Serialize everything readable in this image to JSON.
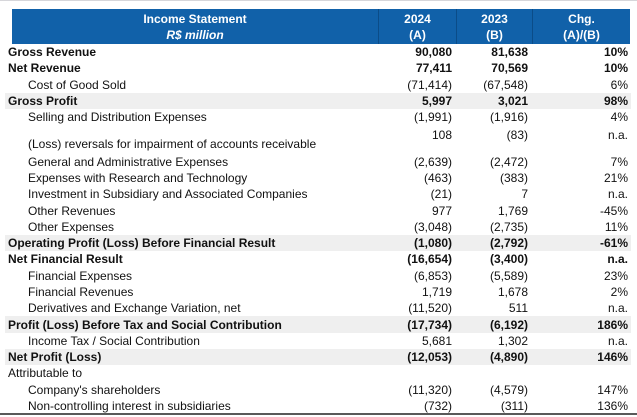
{
  "colors": {
    "header_bg": "#1161A9",
    "header_text": "#FFFFFF",
    "shaded_row_bg": "#EFEFEF",
    "bottom_rule": "#595959"
  },
  "table": {
    "header": {
      "title": "Income Statement",
      "subtitle": "R$ million",
      "col_2024": "2024",
      "col_2024_sub": "(A)",
      "col_2023": "2023",
      "col_2023_sub": "(B)",
      "col_chg": "Chg.",
      "col_chg_sub": "(A)/(B)"
    },
    "rows": [
      {
        "label": "Gross Revenue",
        "a": "90,080",
        "b": "81,638",
        "chg": "10%",
        "bold": true,
        "shaded": false,
        "indent": false,
        "tall": false
      },
      {
        "label": "Net Revenue",
        "a": "77,411",
        "b": "70,569",
        "chg": "10%",
        "bold": true,
        "shaded": false,
        "indent": false,
        "tall": false
      },
      {
        "label": "Cost of Good Sold",
        "a": "(71,414)",
        "b": "(67,548)",
        "chg": "6%",
        "bold": false,
        "shaded": false,
        "indent": true,
        "tall": false
      },
      {
        "label": "Gross Profit",
        "a": "5,997",
        "b": "3,021",
        "chg": "98%",
        "bold": true,
        "shaded": true,
        "indent": false,
        "tall": false
      },
      {
        "label": "Selling and Distribution Expenses",
        "a": "(1,991)",
        "b": "(1,916)",
        "chg": "4%",
        "bold": false,
        "shaded": false,
        "indent": true,
        "tall": false
      },
      {
        "label": "(Loss) reversals for impairment of accounts receivable",
        "a": "108",
        "b": "(83)",
        "chg": "n.a.",
        "bold": false,
        "shaded": false,
        "indent": true,
        "tall": true
      },
      {
        "label": "General and Administrative Expenses",
        "a": "(2,639)",
        "b": "(2,472)",
        "chg": "7%",
        "bold": false,
        "shaded": false,
        "indent": true,
        "tall": false
      },
      {
        "label": "Expenses with Research and Technology",
        "a": "(463)",
        "b": "(383)",
        "chg": "21%",
        "bold": false,
        "shaded": false,
        "indent": true,
        "tall": false
      },
      {
        "label": "Investment in Subsidiary and Associated Companies",
        "a": "(21)",
        "b": "7",
        "chg": "n.a.",
        "bold": false,
        "shaded": false,
        "indent": true,
        "tall": false
      },
      {
        "label": "Other Revenues",
        "a": "977",
        "b": "1,769",
        "chg": "-45%",
        "bold": false,
        "shaded": false,
        "indent": true,
        "tall": false
      },
      {
        "label": "Other Expenses",
        "a": "(3,048)",
        "b": "(2,735)",
        "chg": "11%",
        "bold": false,
        "shaded": false,
        "indent": true,
        "tall": false
      },
      {
        "label": "Operating Profit (Loss) Before Financial Result",
        "a": "(1,080)",
        "b": "(2,792)",
        "chg": "-61%",
        "bold": true,
        "shaded": true,
        "indent": false,
        "tall": false
      },
      {
        "label": "Net Financial Result",
        "a": "(16,654)",
        "b": "(3,400)",
        "chg": "n.a.",
        "bold": true,
        "shaded": false,
        "indent": false,
        "tall": false
      },
      {
        "label": "Financial Expenses",
        "a": "(6,853)",
        "b": "(5,589)",
        "chg": "23%",
        "bold": false,
        "shaded": false,
        "indent": true,
        "tall": false
      },
      {
        "label": "Financial Revenues",
        "a": "1,719",
        "b": "1,678",
        "chg": "2%",
        "bold": false,
        "shaded": false,
        "indent": true,
        "tall": false
      },
      {
        "label": "Derivatives and Exchange Variation, net",
        "a": "(11,520)",
        "b": "511",
        "chg": "n.a.",
        "bold": false,
        "shaded": false,
        "indent": true,
        "tall": false
      },
      {
        "label": "Profit (Loss) Before Tax and Social Contribution",
        "a": "(17,734)",
        "b": "(6,192)",
        "chg": "186%",
        "bold": true,
        "shaded": true,
        "indent": false,
        "tall": false
      },
      {
        "label": "Income Tax / Social Contribution",
        "a": "5,681",
        "b": "1,302",
        "chg": "n.a.",
        "bold": false,
        "shaded": false,
        "indent": true,
        "tall": false
      },
      {
        "label": "Net Profit (Loss)",
        "a": "(12,053)",
        "b": "(4,890)",
        "chg": "146%",
        "bold": true,
        "shaded": true,
        "indent": false,
        "tall": false
      },
      {
        "label": "Attributable to",
        "a": "",
        "b": "",
        "chg": "",
        "bold": false,
        "shaded": false,
        "indent": false,
        "tall": false
      },
      {
        "label": "Company's shareholders",
        "a": "(11,320)",
        "b": "(4,579)",
        "chg": "147%",
        "bold": false,
        "shaded": false,
        "indent": true,
        "tall": false
      },
      {
        "label": "Non-controlling interest in subsidiaries",
        "a": "(732)",
        "b": "(311)",
        "chg": "136%",
        "bold": false,
        "shaded": false,
        "indent": true,
        "tall": false
      }
    ]
  }
}
